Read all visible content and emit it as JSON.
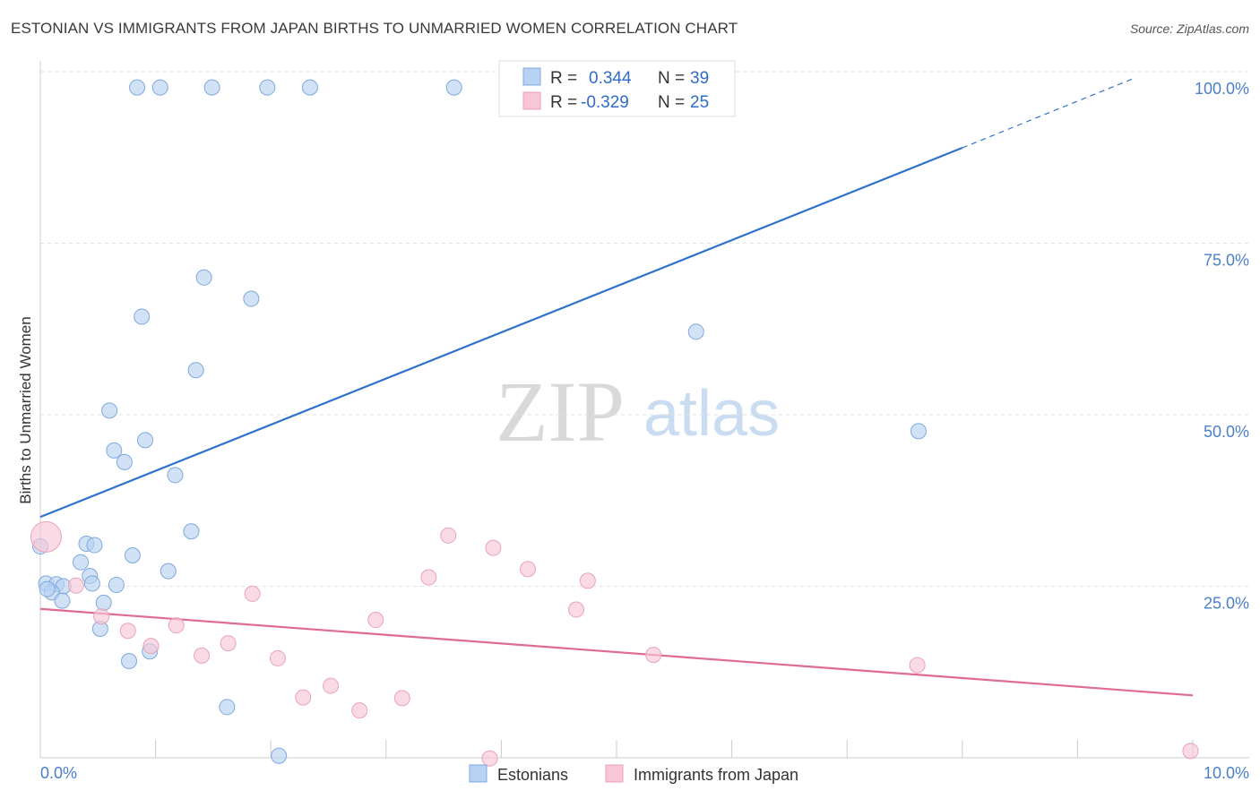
{
  "header": {
    "title": "ESTONIAN VS IMMIGRANTS FROM JAPAN BIRTHS TO UNMARRIED WOMEN CORRELATION CHART",
    "source": "Source: ZipAtlas.com"
  },
  "watermark": {
    "zip": "ZIP",
    "atlas": "atlas"
  },
  "colors": {
    "blue_fill": "#b9d2f3",
    "blue_stroke": "#7fa9dd",
    "blue_line": "#2f72cc",
    "pink_fill": "#f8c6d6",
    "pink_stroke": "#e9a3ba",
    "pink_line": "#e06b95",
    "grid": "#e2e2e2",
    "axis": "#cccccc",
    "tick_text": "#4a7fc9"
  },
  "legend": {
    "rows": [
      {
        "r_label": "R = ",
        "r_value": "0.344",
        "n_label": "N = ",
        "n_value": "39"
      },
      {
        "r_label": "R = ",
        "r_value": "-0.329",
        "n_label": "N = ",
        "n_value": "25"
      }
    ]
  },
  "chart_data": {
    "type": "scatter",
    "title": "ESTONIAN VS IMMIGRANTS FROM JAPAN BIRTHS TO UNMARRIED WOMEN CORRELATION CHART",
    "xlabel": "",
    "ylabel": "Births to Unmarried Women",
    "xlim": [
      0,
      10
    ],
    "ylim": [
      0,
      100
    ],
    "x_tick_labels": [
      "0.0%",
      "10.0%"
    ],
    "y_tick_labels": [
      "100.0%",
      "75.0%",
      "50.0%",
      "25.0%"
    ],
    "y_ticks": [
      100,
      75,
      50,
      25
    ],
    "grid": true,
    "legend_position": "top-center",
    "series": [
      {
        "name": "Estonians",
        "stats": {
          "R": 0.344,
          "N": 39
        },
        "trend": {
          "x0": 0,
          "y0": 35.1,
          "x1": 8.0,
          "y1": 88.9,
          "dash_to_x": 9.5,
          "dash_to_y": 99.1
        },
        "points": [
          {
            "x": 0.84,
            "y": 97.7
          },
          {
            "x": 1.04,
            "y": 97.7
          },
          {
            "x": 1.49,
            "y": 97.7
          },
          {
            "x": 1.97,
            "y": 97.7
          },
          {
            "x": 2.34,
            "y": 97.7
          },
          {
            "x": 3.59,
            "y": 97.7
          },
          {
            "x": 1.42,
            "y": 70.0
          },
          {
            "x": 1.83,
            "y": 66.9
          },
          {
            "x": 0.88,
            "y": 64.3
          },
          {
            "x": 5.69,
            "y": 62.1
          },
          {
            "x": 1.35,
            "y": 56.5
          },
          {
            "x": 0.6,
            "y": 50.6
          },
          {
            "x": 0.91,
            "y": 46.3
          },
          {
            "x": 0.64,
            "y": 44.8
          },
          {
            "x": 0.73,
            "y": 43.1
          },
          {
            "x": 1.17,
            "y": 41.2
          },
          {
            "x": 7.62,
            "y": 47.6
          },
          {
            "x": 1.31,
            "y": 33.0
          },
          {
            "x": 0.4,
            "y": 31.2
          },
          {
            "x": 0.47,
            "y": 31.0
          },
          {
            "x": 0.0,
            "y": 30.8
          },
          {
            "x": 0.8,
            "y": 29.5
          },
          {
            "x": 0.35,
            "y": 28.5
          },
          {
            "x": 1.11,
            "y": 27.2
          },
          {
            "x": 0.43,
            "y": 26.5
          },
          {
            "x": 0.05,
            "y": 25.4
          },
          {
            "x": 0.14,
            "y": 25.3
          },
          {
            "x": 0.45,
            "y": 25.4
          },
          {
            "x": 0.66,
            "y": 25.2
          },
          {
            "x": 0.2,
            "y": 25.0
          },
          {
            "x": 0.1,
            "y": 24.1
          },
          {
            "x": 0.19,
            "y": 22.9
          },
          {
            "x": 0.55,
            "y": 22.6
          },
          {
            "x": 0.52,
            "y": 18.8
          },
          {
            "x": 0.95,
            "y": 15.5
          },
          {
            "x": 0.77,
            "y": 14.1
          },
          {
            "x": 1.62,
            "y": 7.4
          },
          {
            "x": 2.07,
            "y": 0.3
          },
          {
            "x": 0.06,
            "y": 24.6
          }
        ]
      },
      {
        "name": "Immigrants from Japan",
        "stats": {
          "R": -0.329,
          "N": 25
        },
        "trend": {
          "x0": 0,
          "y0": 21.7,
          "x1": 10,
          "y1": 9.1
        },
        "points": [
          {
            "x": 0.05,
            "y": 32.2,
            "big": true
          },
          {
            "x": 3.54,
            "y": 32.4
          },
          {
            "x": 3.93,
            "y": 30.6
          },
          {
            "x": 4.23,
            "y": 27.5
          },
          {
            "x": 3.37,
            "y": 26.3
          },
          {
            "x": 4.75,
            "y": 25.8
          },
          {
            "x": 1.84,
            "y": 23.9
          },
          {
            "x": 0.31,
            "y": 25.1
          },
          {
            "x": 4.65,
            "y": 21.6
          },
          {
            "x": 2.91,
            "y": 20.1
          },
          {
            "x": 0.53,
            "y": 20.6
          },
          {
            "x": 1.18,
            "y": 19.3
          },
          {
            "x": 0.76,
            "y": 18.5
          },
          {
            "x": 0.96,
            "y": 16.3
          },
          {
            "x": 1.63,
            "y": 16.7
          },
          {
            "x": 1.4,
            "y": 14.9
          },
          {
            "x": 2.06,
            "y": 14.5
          },
          {
            "x": 5.32,
            "y": 15.0
          },
          {
            "x": 7.61,
            "y": 13.5
          },
          {
            "x": 2.52,
            "y": 10.5
          },
          {
            "x": 2.28,
            "y": 8.8
          },
          {
            "x": 3.14,
            "y": 8.7
          },
          {
            "x": 2.77,
            "y": 6.9
          },
          {
            "x": 3.9,
            "y": -0.1
          },
          {
            "x": 9.98,
            "y": 1.0
          }
        ]
      }
    ]
  }
}
